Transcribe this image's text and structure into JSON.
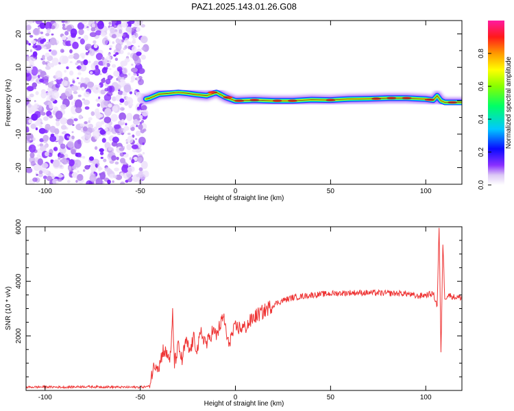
{
  "chart_data": [
    {
      "type": "heatmap",
      "title": "PAZ1.2025.143.01.26.G08",
      "xlabel": "Height of straight line (km)",
      "ylabel": "Frequency (Hz)",
      "xlim": [
        -110,
        119
      ],
      "ylim": [
        -25,
        24
      ],
      "xticks": [
        -100,
        -50,
        0,
        50,
        100
      ],
      "yticks": [
        -20,
        -10,
        0,
        10,
        20
      ],
      "noise_region_x": [
        -110,
        -47
      ],
      "colorbar": {
        "label": "Normalized spectral amplitude",
        "range": [
          0,
          1
        ],
        "ticks": [
          0.0,
          0.2,
          0.4,
          0.6,
          0.8
        ]
      },
      "ridge": {
        "x": [
          -47,
          -45,
          -40,
          -35,
          -30,
          -25,
          -20,
          -15,
          -10,
          -5,
          0,
          10,
          20,
          30,
          40,
          50,
          60,
          70,
          80,
          90,
          100,
          104,
          106,
          108,
          110,
          119
        ],
        "y": [
          0.5,
          0.8,
          2.0,
          2.2,
          2.5,
          2.2,
          1.8,
          1.5,
          2.5,
          1.0,
          0.0,
          0.2,
          0.0,
          0.0,
          0.3,
          0.2,
          0.5,
          0.6,
          0.8,
          0.8,
          0.5,
          0.2,
          1.5,
          0.0,
          -0.5,
          -0.5
        ]
      }
    },
    {
      "type": "line",
      "title": "",
      "xlabel": "Height of straight line (km)",
      "ylabel": "SNR (10 * v/v)",
      "xlim": [
        -110,
        119
      ],
      "ylim": [
        0,
        6000
      ],
      "xticks": [
        -100,
        -50,
        0,
        50,
        100
      ],
      "yticks": [
        2000,
        4000,
        6000
      ],
      "series": [
        {
          "color": "#ee3333",
          "x": [
            -110,
            -100,
            -90,
            -80,
            -70,
            -60,
            -50,
            -45,
            -44,
            -42,
            -40,
            -38,
            -36,
            -34,
            -33,
            -32,
            -30,
            -28,
            -26,
            -24,
            -22,
            -20,
            -18,
            -15,
            -12,
            -10,
            -8,
            -6,
            -4,
            -2,
            0,
            5,
            10,
            15,
            20,
            25,
            30,
            40,
            50,
            60,
            70,
            80,
            90,
            95,
            100,
            104,
            106,
            107,
            108,
            109,
            110,
            112,
            115,
            119
          ],
          "y": [
            120,
            130,
            120,
            140,
            130,
            120,
            120,
            150,
            600,
            1000,
            900,
            1500,
            1300,
            1200,
            2800,
            1000,
            1600,
            1100,
            1800,
            1400,
            1900,
            1500,
            2100,
            1700,
            2200,
            2000,
            2400,
            2700,
            1700,
            2000,
            2300,
            2300,
            2700,
            2900,
            3150,
            3300,
            3400,
            3500,
            3550,
            3580,
            3580,
            3560,
            3550,
            3450,
            3500,
            3550,
            3100,
            6000,
            1300,
            5400,
            3400,
            3500,
            3420,
            3400
          ]
        }
      ]
    }
  ]
}
